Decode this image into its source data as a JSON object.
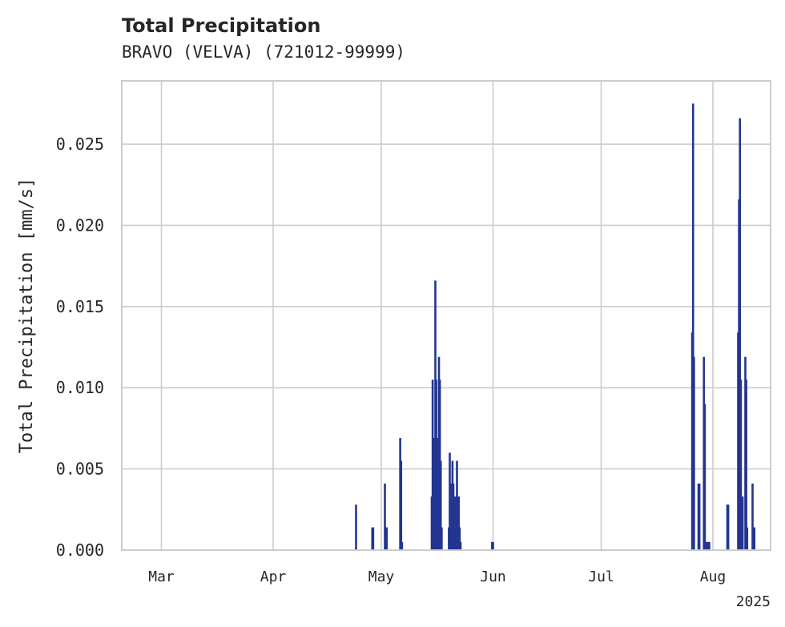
{
  "chart_data": {
    "type": "bar",
    "title": "Total Precipitation",
    "subtitle": "BRAVO (VELVA) (721012-99999)",
    "xlabel": "",
    "ylabel": "Total Precipitation [mm/s]",
    "year_label": "2025",
    "xlim": [
      "2025-02-18",
      "2025-08-17"
    ],
    "ylim": [
      0,
      0.0289
    ],
    "y_ticks": [
      {
        "value": 0,
        "label": "0.000"
      },
      {
        "value": 0.005,
        "label": "0.005"
      },
      {
        "value": 0.01,
        "label": "0.010"
      },
      {
        "value": 0.015,
        "label": "0.015"
      },
      {
        "value": 0.02,
        "label": "0.020"
      },
      {
        "value": 0.025,
        "label": "0.025"
      }
    ],
    "x_ticks": [
      {
        "value": "2025-03-01",
        "label": "Mar"
      },
      {
        "value": "2025-04-01",
        "label": "Apr"
      },
      {
        "value": "2025-05-01",
        "label": "May"
      },
      {
        "value": "2025-06-01",
        "label": "Jun"
      },
      {
        "value": "2025-07-01",
        "label": "Jul"
      },
      {
        "value": "2025-08-01",
        "label": "Aug"
      }
    ],
    "grid": true,
    "bar_color": "#233591",
    "series": [
      {
        "x": [
          "2025-04-24T00:00",
          "2025-04-28T12:00",
          "2025-04-28T18:00",
          "2025-05-02T00:00",
          "2025-05-02T06:00",
          "2025-05-02T12:00",
          "2025-05-06T06:00",
          "2025-05-06T12:00",
          "2025-05-06T18:00",
          "2025-05-15T00:00",
          "2025-05-15T06:00",
          "2025-05-15T12:00",
          "2025-05-15T18:00",
          "2025-05-16T00:00",
          "2025-05-16T06:00",
          "2025-05-16T12:00",
          "2025-05-16T18:00",
          "2025-05-17T00:00",
          "2025-05-17T06:00",
          "2025-05-17T12:00",
          "2025-05-17T18:00",
          "2025-05-19T18:00",
          "2025-05-20T00:00",
          "2025-05-20T06:00",
          "2025-05-20T12:00",
          "2025-05-20T18:00",
          "2025-05-21T00:00",
          "2025-05-21T06:00",
          "2025-05-21T12:00",
          "2025-05-21T18:00",
          "2025-05-22T00:00",
          "2025-05-22T06:00",
          "2025-05-22T12:00",
          "2025-05-22T18:00",
          "2025-05-23T00:00",
          "2025-05-31T18:00",
          "2025-06-01T00:00",
          "2025-07-26T06:00",
          "2025-07-26T12:00",
          "2025-07-26T18:00",
          "2025-07-28T00:00",
          "2025-07-28T06:00",
          "2025-07-29T12:00",
          "2025-07-29T18:00",
          "2025-07-30T00:00",
          "2025-07-30T06:00",
          "2025-07-30T12:00",
          "2025-07-30T18:00",
          "2025-07-31T00:00",
          "2025-08-05T00:00",
          "2025-08-05T06:00",
          "2025-08-08T00:00",
          "2025-08-08T06:00",
          "2025-08-08T12:00",
          "2025-08-08T18:00",
          "2025-08-09T00:00",
          "2025-08-09T06:00",
          "2025-08-10T00:00",
          "2025-08-10T06:00",
          "2025-08-10T12:00",
          "2025-08-12T00:00",
          "2025-08-12T06:00",
          "2025-08-12T12:00"
        ],
        "values": [
          0.0028,
          0.0014,
          0.0014,
          0.0041,
          0.0014,
          0.0014,
          0.0069,
          0.0055,
          0.0005,
          0.0033,
          0.0105,
          0.0069,
          0.0014,
          0.0166,
          0.0105,
          0.0069,
          0.0033,
          0.0119,
          0.0105,
          0.0055,
          0.0014,
          0.0014,
          0.006,
          0.0041,
          0.0014,
          0.0055,
          0.0041,
          0.0033,
          0.0014,
          0.0033,
          0.0055,
          0.0014,
          0.0033,
          0.0014,
          0.0005,
          0.0005,
          0.0005,
          0.0134,
          0.0275,
          0.0119,
          0.0041,
          0.0041,
          0.0119,
          0.009,
          0.0005,
          0.0005,
          0.0005,
          0.0005,
          0.0005,
          0.0028,
          0.0028,
          0.0134,
          0.0216,
          0.0266,
          0.0105,
          0.0033,
          0.0033,
          0.0119,
          0.0105,
          0.0014,
          0.0041,
          0.0014,
          0.0014
        ]
      }
    ]
  }
}
